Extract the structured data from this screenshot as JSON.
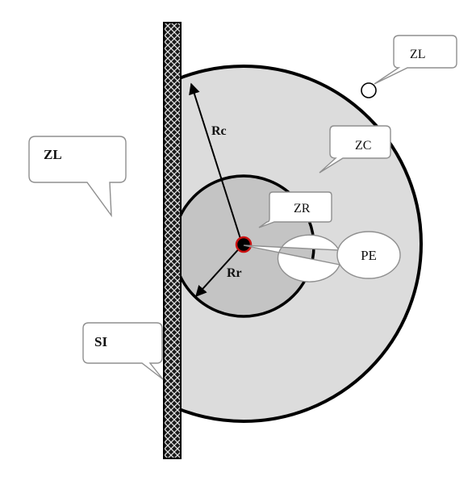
{
  "labels": {
    "zl_top": "ZL",
    "zl_left": "ZL",
    "zc": "ZC",
    "zr": "ZR",
    "pe": "PE",
    "si": "SI",
    "rc": "Rc",
    "rr": "Rr"
  },
  "colors": {
    "outer_zone": "#dcdcdc",
    "inner_zone": "#c4c4c4",
    "outline": "#000000",
    "wall": "#1a1a1a",
    "center_point": "#cc1111",
    "callout_border": "#8f8f8f"
  }
}
